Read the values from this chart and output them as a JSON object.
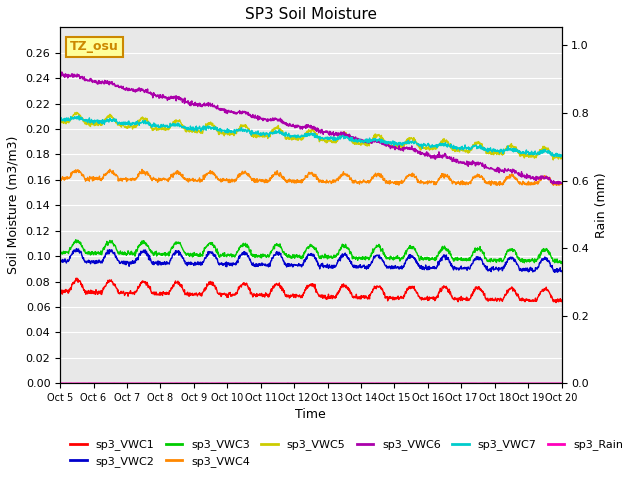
{
  "title": "SP3 Soil Moisture",
  "xlabel": "Time",
  "ylabel_left": "Soil Moisture (m3/m3)",
  "ylabel_right": "Rain (mm)",
  "ylim_left": [
    0.0,
    0.28
  ],
  "ylim_right": [
    0.0,
    1.0535714
  ],
  "bg_color": "#e8e8e8",
  "n_points": 1440,
  "n_days": 15,
  "series": {
    "sp3_VWC1": {
      "color": "#ff0000",
      "base": 0.072,
      "amp": 0.009,
      "trend": -5e-06
    },
    "sp3_VWC2": {
      "color": "#0000cc",
      "base": 0.096,
      "amp": 0.009,
      "trend": -5e-06
    },
    "sp3_VWC3": {
      "color": "#00cc00",
      "base": 0.103,
      "amp": 0.009,
      "trend": -5e-06
    },
    "sp3_VWC4": {
      "color": "#ff8800",
      "base": 0.161,
      "amp": 0.006,
      "trend": -3e-06
    },
    "sp3_VWC5": {
      "color": "#cccc00",
      "base": 0.206,
      "amp": 0.007,
      "trend": -2e-05
    },
    "sp3_VWC6": {
      "color": "#aa00aa",
      "base": 0.243,
      "amp": 0.002,
      "trend": -6e-05
    },
    "sp3_VWC7": {
      "color": "#00cccc",
      "base": 0.208,
      "amp": 0.002,
      "trend": -2e-05
    },
    "sp3_Rain": {
      "color": "#ff00bb",
      "base": 0.0,
      "amp": 0.0,
      "trend": 0.0
    }
  },
  "x_tick_labels": [
    "Oct 5",
    "Oct 6",
    "Oct 7",
    "Oct 8",
    "Oct 9",
    "Oct 10",
    "Oct 11",
    "Oct 12",
    "Oct 13",
    "Oct 14",
    "Oct 15",
    "Oct 16",
    "Oct 17",
    "Oct 18",
    "Oct 19",
    "Oct 20"
  ],
  "annotation_text": "TZ_osu",
  "annotation_color": "#cc8800",
  "annotation_bg": "#ffff99",
  "right_ticks": [
    0.0,
    0.2,
    0.4,
    0.6,
    0.8,
    1.0
  ],
  "left_ticks": [
    0.0,
    0.02,
    0.04,
    0.06,
    0.08,
    0.1,
    0.12,
    0.14,
    0.16,
    0.18,
    0.2,
    0.22,
    0.24,
    0.26
  ]
}
